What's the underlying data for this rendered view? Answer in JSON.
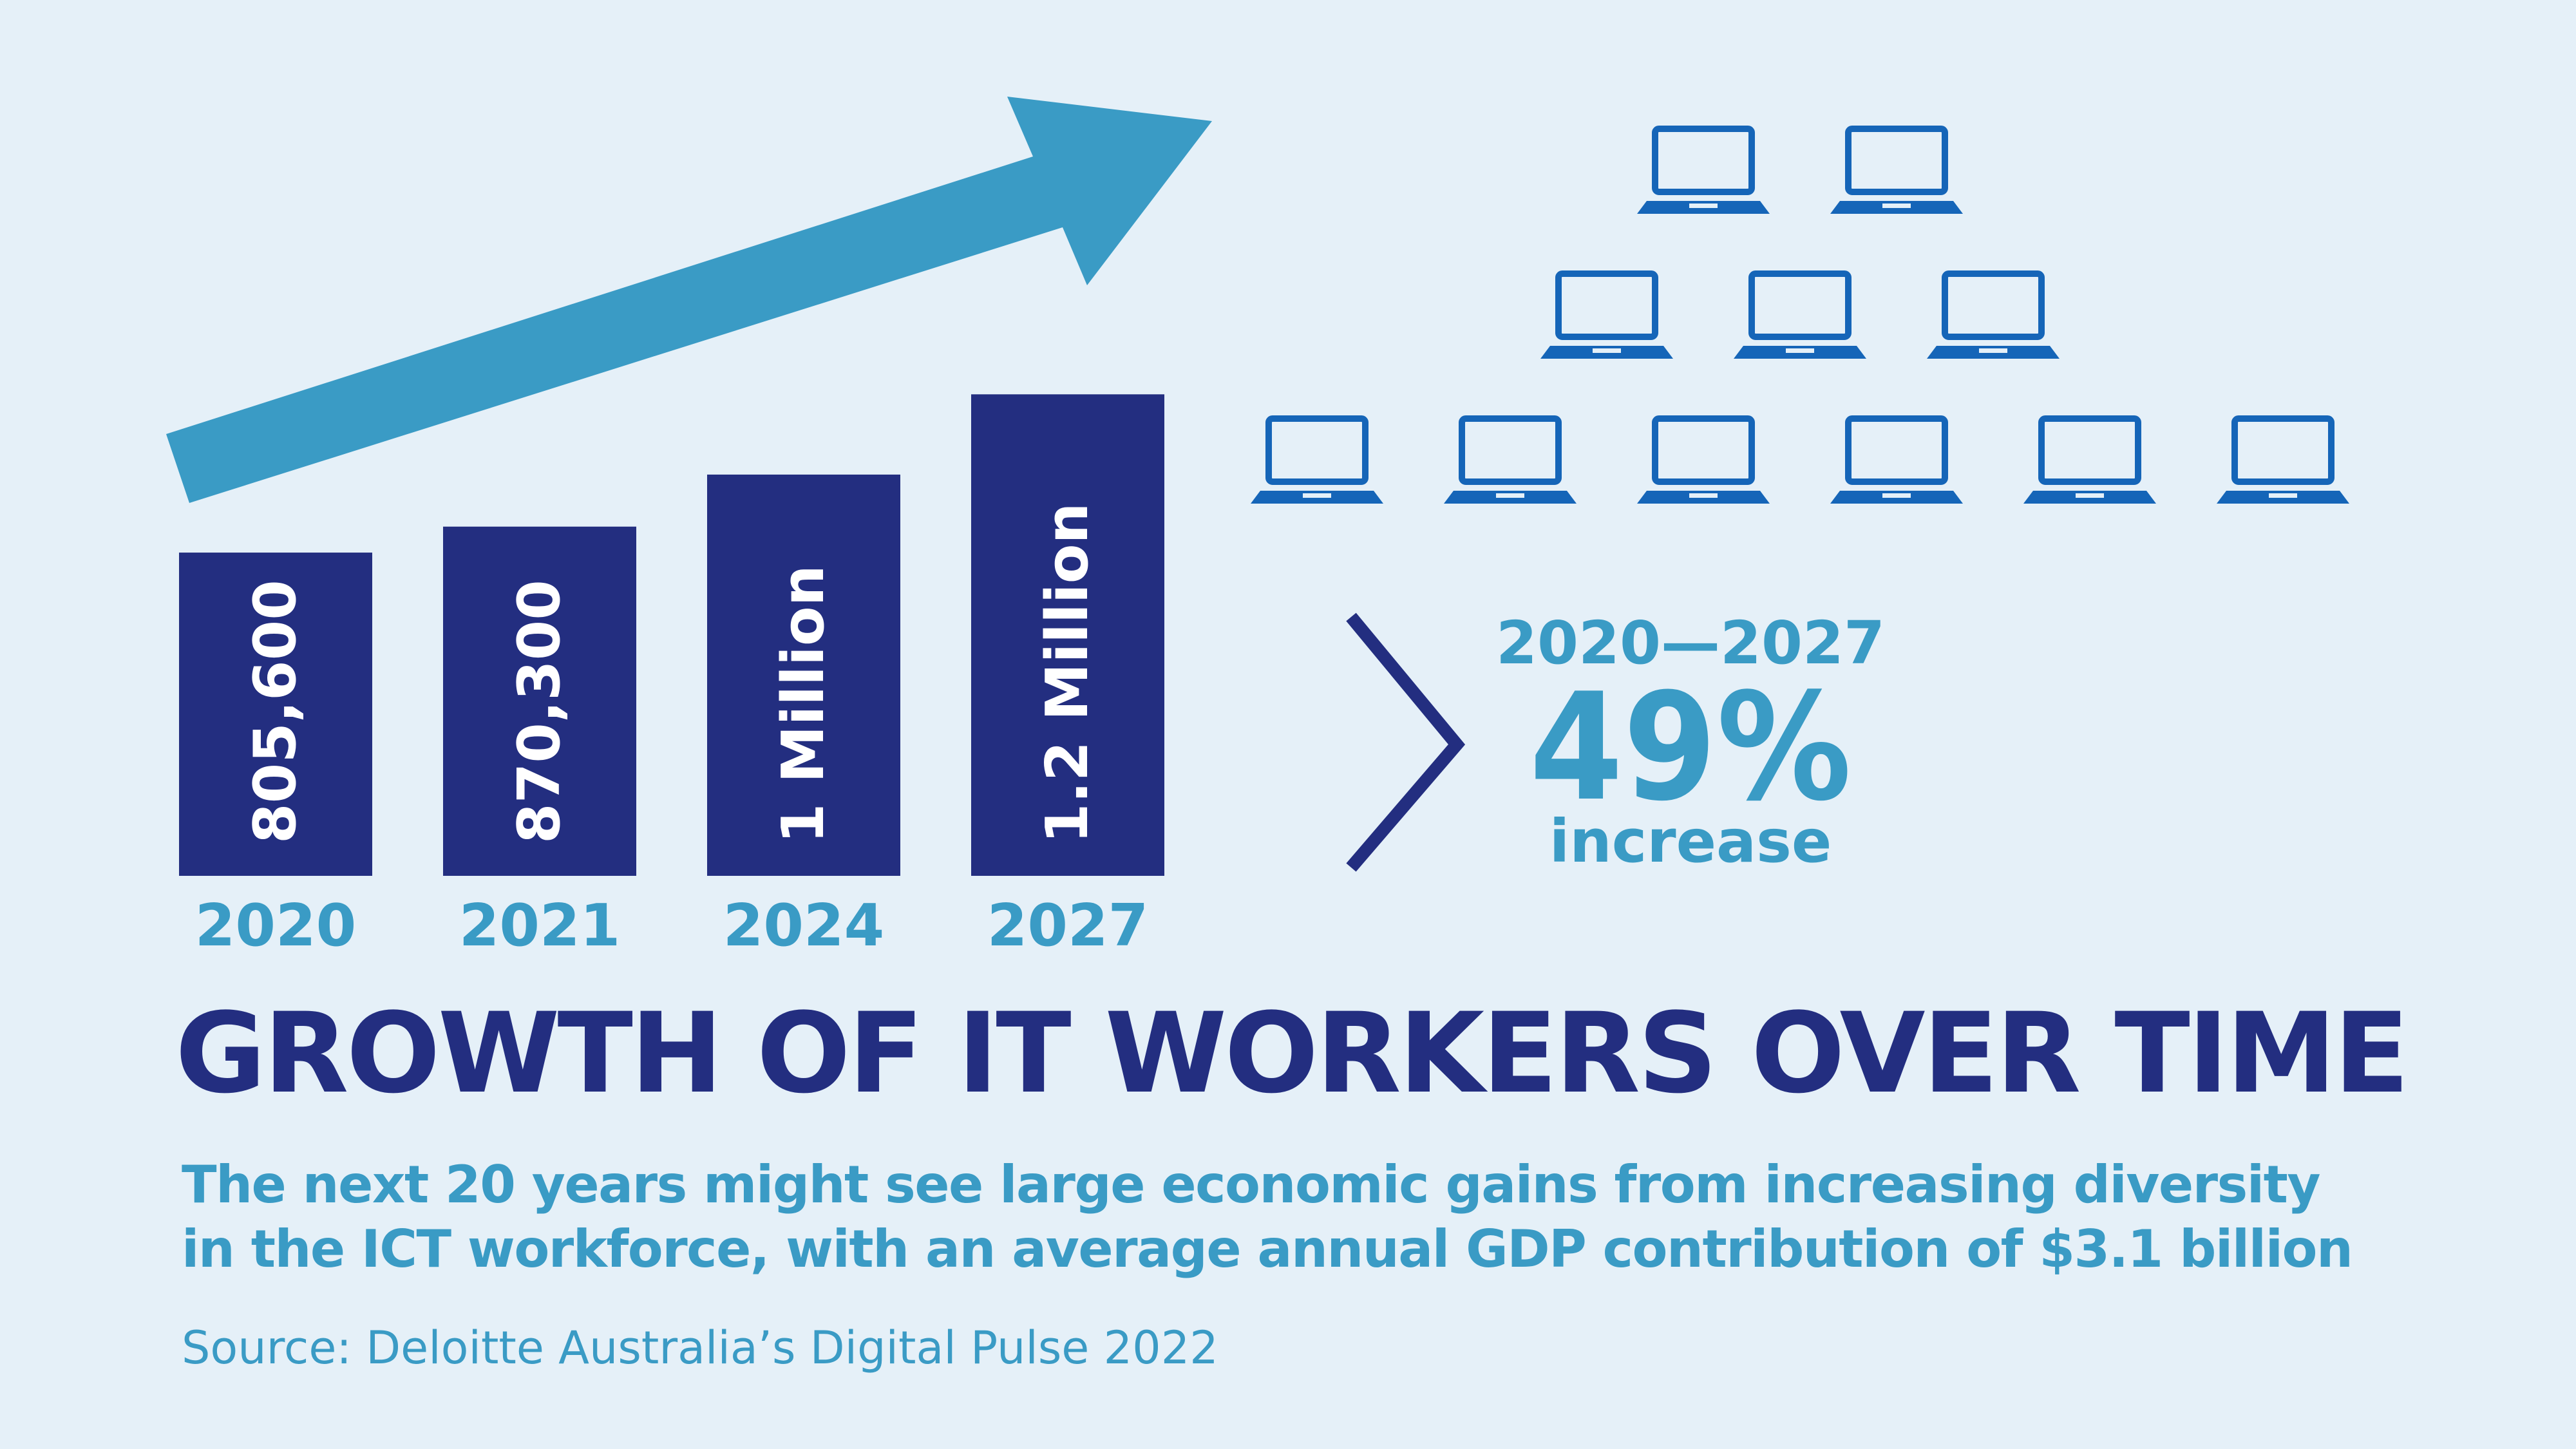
{
  "chart_data": {
    "type": "bar",
    "categories": [
      "2020",
      "2021",
      "2024",
      "2027"
    ],
    "values": [
      805600,
      870300,
      1000000,
      1200000
    ],
    "value_labels": [
      "805,600",
      "870,300",
      "1 Million",
      "1.2 Million"
    ],
    "ylim": [
      0,
      1300000
    ],
    "colors": {
      "bar": "#232e80",
      "accent": "#3a9bc5",
      "background": "#e5f0f8"
    }
  },
  "highlight": {
    "period": "2020—2027",
    "percent": "49%",
    "label": "increase"
  },
  "decoration": {
    "laptop_icon_rows": [
      2,
      3,
      6
    ]
  },
  "title": "GROWTH OF IT WORKERS OVER TIME",
  "subtitle_lines": [
    "The next 20 years might see large economic gains from increasing diversity",
    "in the ICT workforce, with an average annual GDP contribution of $3.1 billion"
  ],
  "source": "Source: Deloitte Australia’s Digital Pulse 2022"
}
